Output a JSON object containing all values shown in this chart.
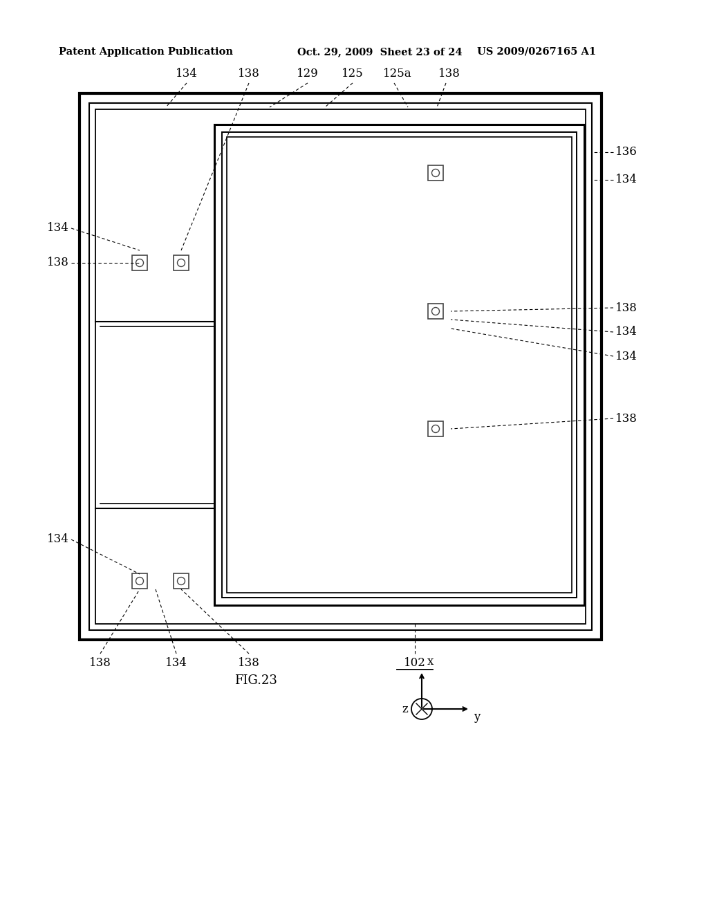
{
  "bg_color": "#ffffff",
  "header_left": "Patent Application Publication",
  "header_mid": "Oct. 29, 2009  Sheet 23 of 24",
  "header_right": "US 2009/0267165 A1",
  "fig_label": "FIG.23"
}
